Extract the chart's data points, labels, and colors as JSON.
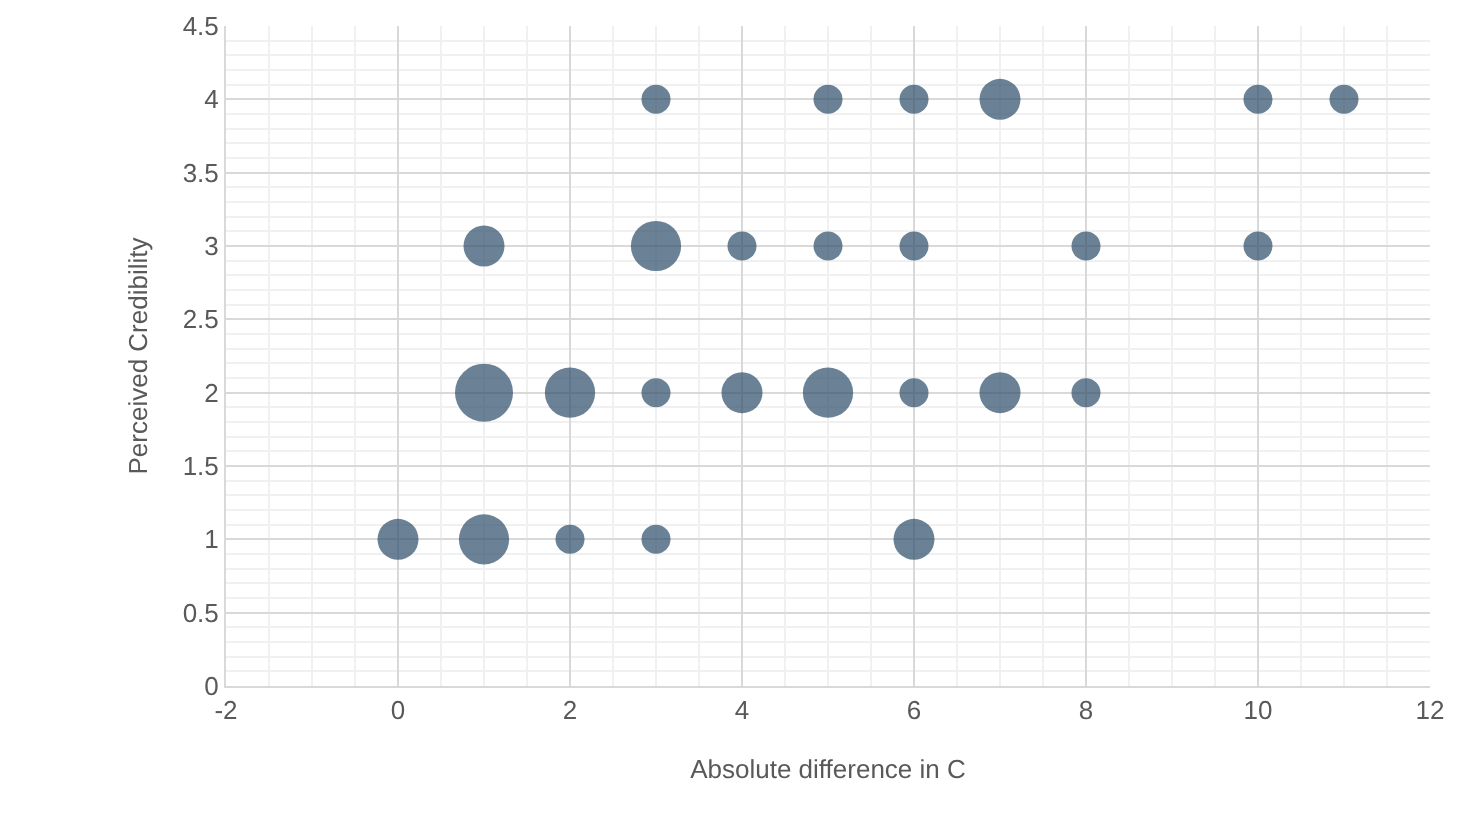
{
  "chart_data": {
    "type": "bubble",
    "xlabel": "Absolute difference in C",
    "ylabel": "Perceived Credibility",
    "x": [
      3,
      5,
      6,
      7,
      10,
      11,
      1,
      3,
      4,
      5,
      6,
      8,
      10,
      1,
      2,
      3,
      4,
      5,
      6,
      7,
      8,
      0,
      1,
      2,
      3,
      6
    ],
    "values": [
      4,
      4,
      4,
      4,
      4,
      4,
      3,
      3,
      3,
      3,
      3,
      3,
      3,
      2,
      2,
      2,
      2,
      2,
      2,
      2,
      2,
      1,
      1,
      1,
      1,
      1
    ],
    "sizes": [
      0.25,
      0.25,
      0.25,
      0.5,
      0.25,
      0.25,
      0.5,
      0.75,
      0.25,
      0.25,
      0.25,
      0.25,
      0.25,
      1,
      0.75,
      0.25,
      0.5,
      0.75,
      0.25,
      0.5,
      0.25,
      0.5,
      0.75,
      0.25,
      0.25,
      0.5
    ],
    "color": "#2c4b6a",
    "xlim": [
      -2,
      12
    ],
    "xticks": [
      -2,
      0,
      2,
      4,
      6,
      8,
      10,
      12
    ],
    "ylim": [
      0,
      4.5
    ],
    "yticks": [
      0,
      0.5,
      1,
      1.5,
      2,
      2.5,
      3,
      3.5,
      4,
      4.5
    ],
    "grid": true,
    "legend": false
  }
}
